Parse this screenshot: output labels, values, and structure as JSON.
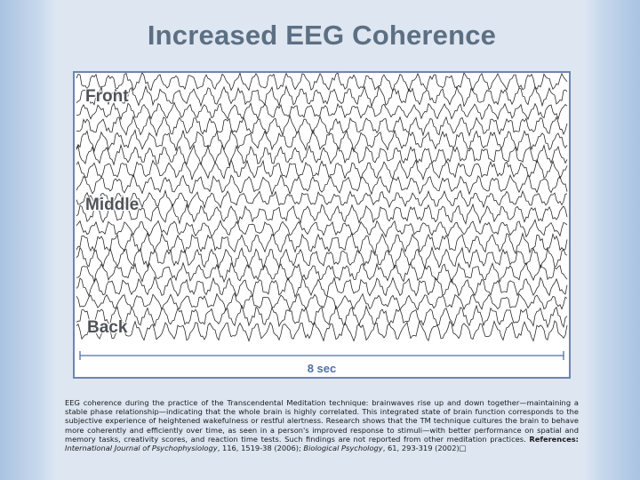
{
  "slide": {
    "title": "Increased EEG Coherence",
    "regions": [
      "Front",
      "Middle",
      "Back"
    ],
    "duration_label": "8 sec",
    "caption": {
      "body": "EEG coherence during the practice of the Transcendental Meditation technique: brainwaves rise up and down together—maintaining a stable phase relationship—indicating that the whole brain is highly correlated. This integrated state of brain function corresponds to the subjective experience of heightened wakefulness or restful alertness. Research shows that the TM technique cultures the brain to behave more coherently and efficiently over time, as seen in a person's improved response to stimuli—with better performance on spatial and memory tasks, creativity scores, and reaction time tests. Such findings are not reported from other meditation practices.",
      "references_label": "References:",
      "ref1_journal": "International Journal of Psychophysiology",
      "ref1_details": ", 116, 1519-38 (2006);",
      "ref2_journal": "Biological Psychology",
      "ref2_details": ", 61, 293-319 (2002)",
      "trailing_glyph": "□"
    }
  },
  "colors": {
    "title": "#5d6f83",
    "frame_border": "#6c86b0",
    "trace": "#2a2a2a",
    "duration": "#4e6fa6"
  }
}
